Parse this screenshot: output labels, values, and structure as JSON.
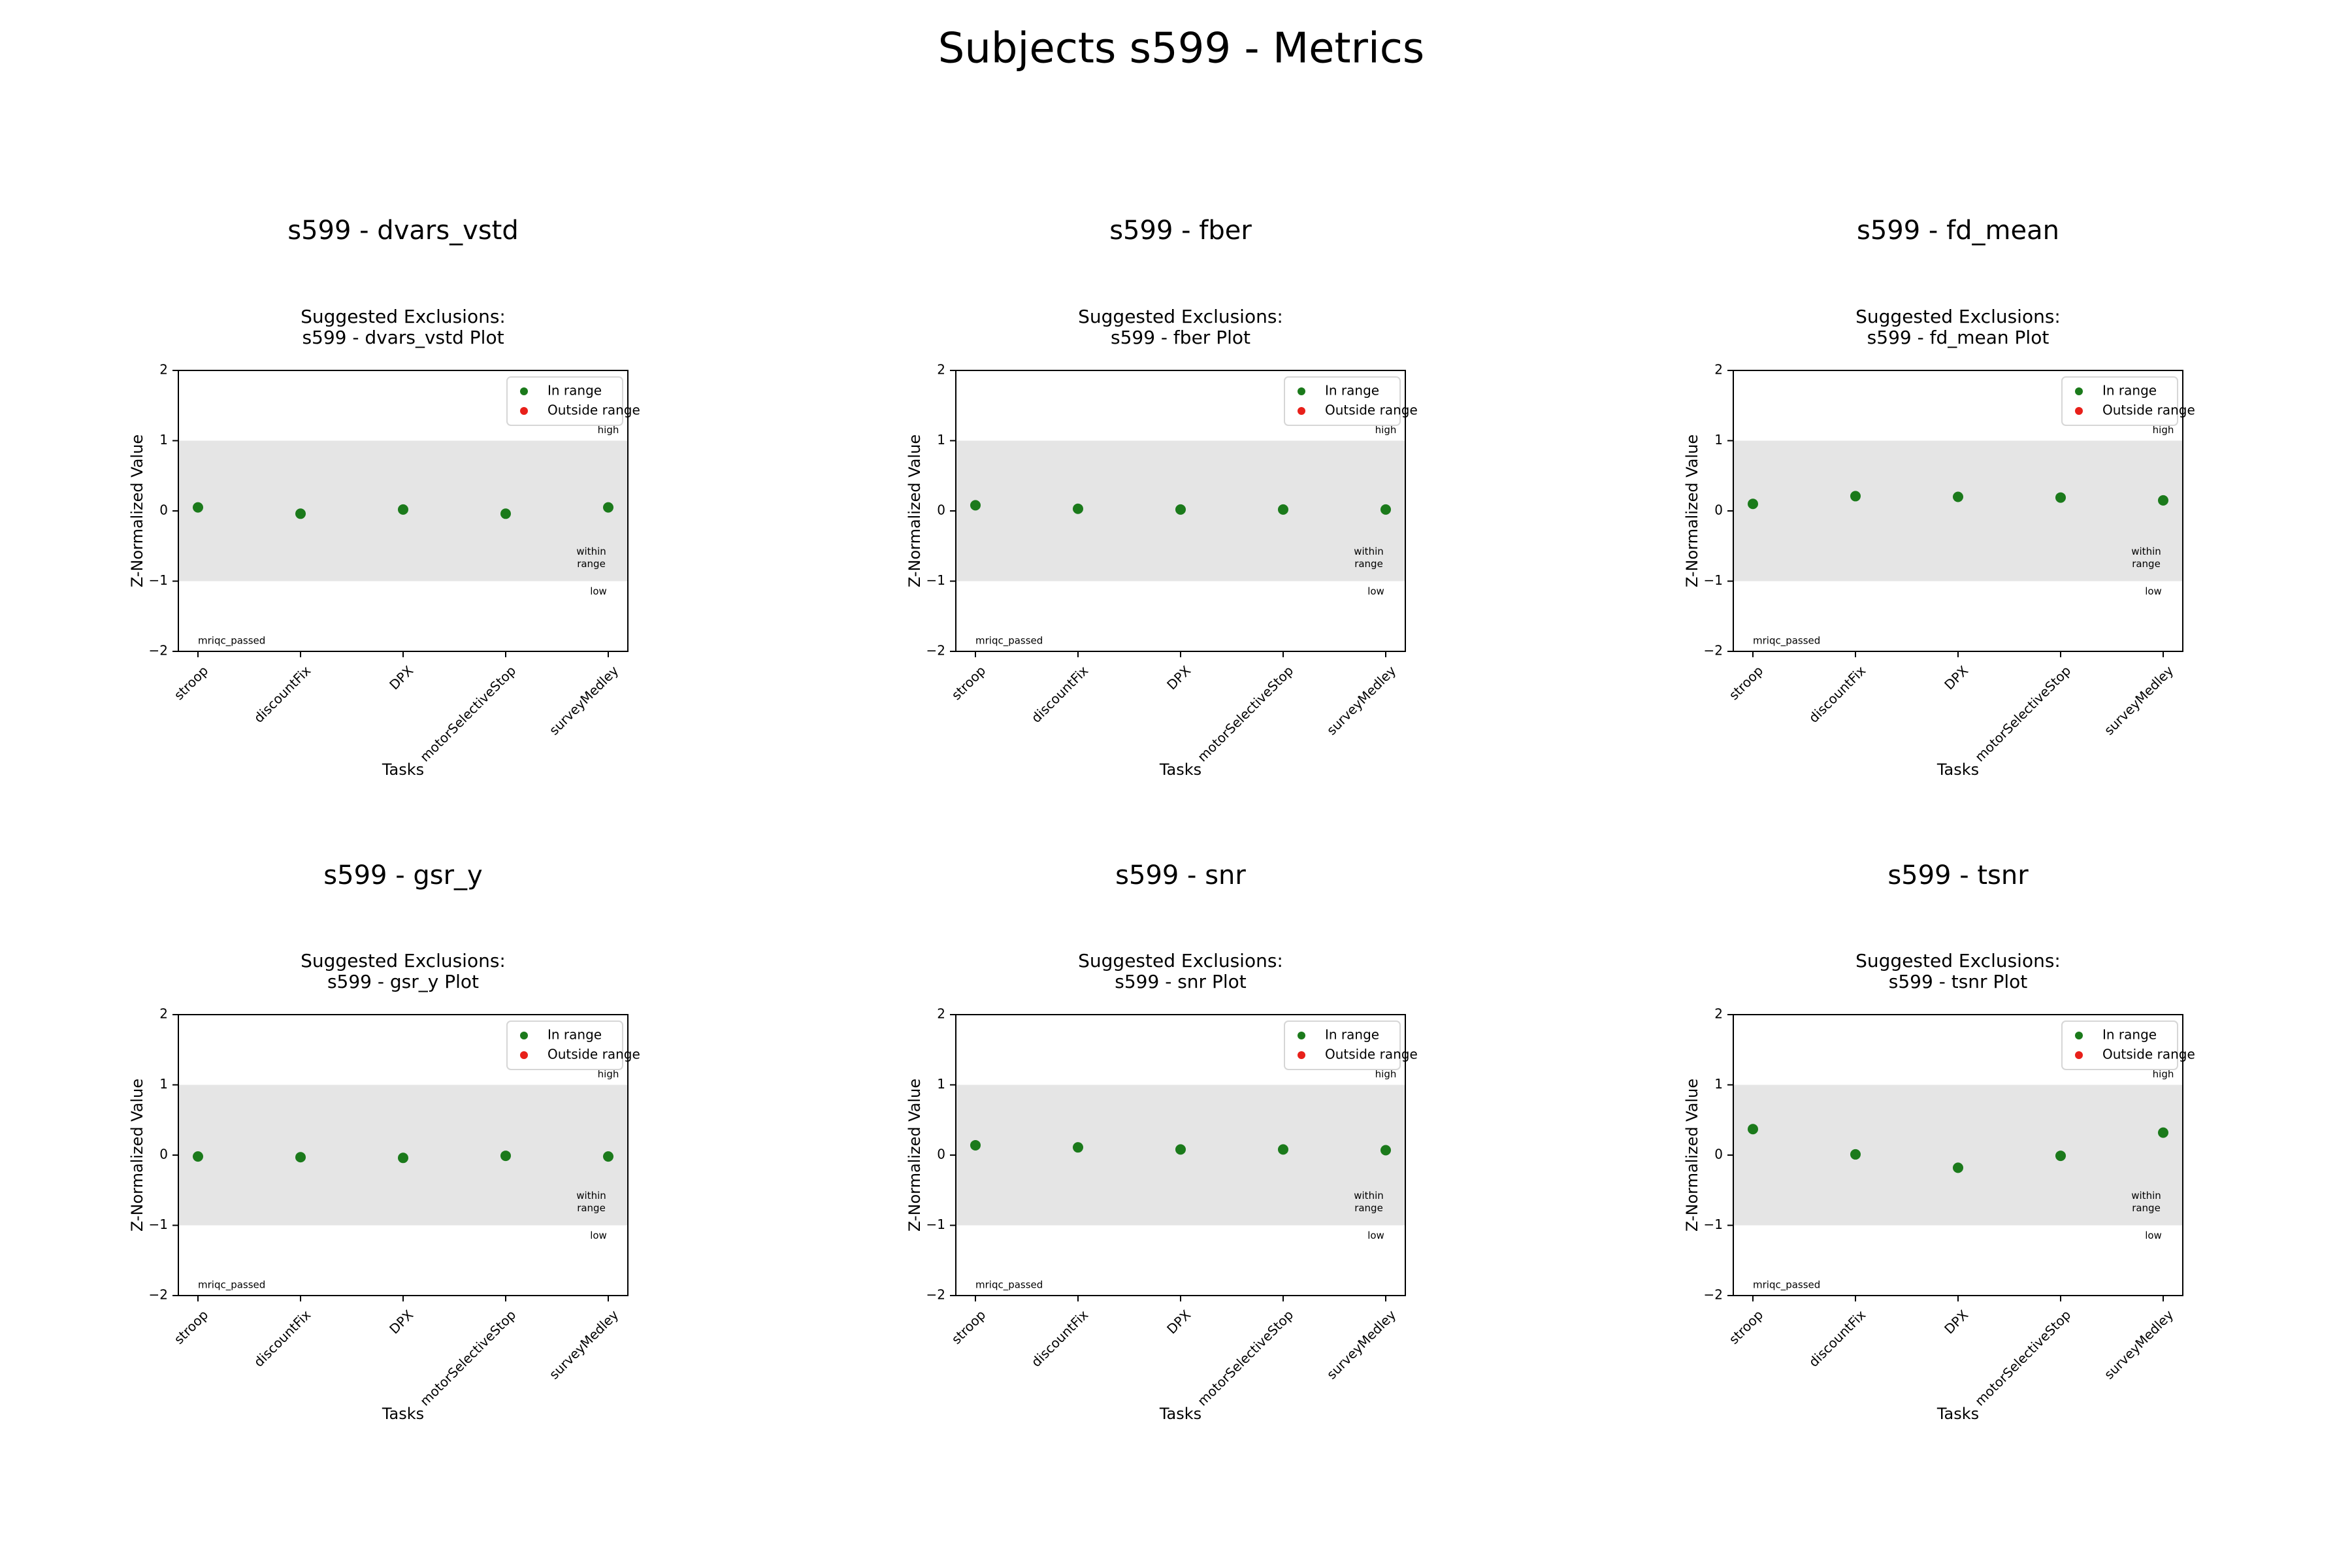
{
  "figure": {
    "title": "Subjects s599 - Metrics"
  },
  "legend": {
    "in_label": "In range",
    "out_label": "Outside range",
    "in_color": "#1b7a1b",
    "out_color": "#e8201a",
    "placement": "upper right"
  },
  "annotations": {
    "high": "high",
    "within": [
      "within",
      "range"
    ],
    "low": "low",
    "passed": "mriqc_passed"
  },
  "chart_data": [
    {
      "type": "scatter",
      "title": "s599 - dvars_vstd",
      "subtitle": [
        "Suggested Exclusions:",
        "s599 - dvars_vstd Plot"
      ],
      "xlabel": "Tasks",
      "ylabel": "Z-Normalized Value",
      "categories": [
        "stroop",
        "discountFix",
        "DPX",
        "motorSelectiveStop",
        "surveyMedley"
      ],
      "values": [
        0.05,
        -0.04,
        0.02,
        -0.04,
        0.05
      ],
      "ylim": [
        -2,
        2
      ],
      "yticks": [
        2,
        1,
        0,
        -1,
        -2
      ],
      "ytick_labels": [
        "2",
        "1",
        "0",
        "−1",
        "−2"
      ],
      "band": [
        -1,
        1
      ],
      "grid": false
    },
    {
      "type": "scatter",
      "title": "s599 - fber",
      "subtitle": [
        "Suggested Exclusions:",
        "s599 - fber Plot"
      ],
      "xlabel": "Tasks",
      "ylabel": "Z-Normalized Value",
      "categories": [
        "stroop",
        "discountFix",
        "DPX",
        "motorSelectiveStop",
        "surveyMedley"
      ],
      "values": [
        0.08,
        0.03,
        0.02,
        0.02,
        0.02
      ],
      "ylim": [
        -2,
        2
      ],
      "yticks": [
        2,
        1,
        0,
        -1,
        -2
      ],
      "ytick_labels": [
        "2",
        "1",
        "0",
        "−1",
        "−2"
      ],
      "band": [
        -1,
        1
      ],
      "grid": false
    },
    {
      "type": "scatter",
      "title": "s599 - fd_mean",
      "subtitle": [
        "Suggested Exclusions:",
        "s599 - fd_mean Plot"
      ],
      "xlabel": "Tasks",
      "ylabel": "Z-Normalized Value",
      "categories": [
        "stroop",
        "discountFix",
        "DPX",
        "motorSelectiveStop",
        "surveyMedley"
      ],
      "values": [
        0.1,
        0.21,
        0.2,
        0.19,
        0.15
      ],
      "ylim": [
        -2,
        2
      ],
      "yticks": [
        2,
        1,
        0,
        -1,
        -2
      ],
      "ytick_labels": [
        "2",
        "1",
        "0",
        "−1",
        "−2"
      ],
      "band": [
        -1,
        1
      ],
      "grid": false
    },
    {
      "type": "scatter",
      "title": "s599 - gsr_y",
      "subtitle": [
        "Suggested Exclusions:",
        "s599 - gsr_y Plot"
      ],
      "xlabel": "Tasks",
      "ylabel": "Z-Normalized Value",
      "categories": [
        "stroop",
        "discountFix",
        "DPX",
        "motorSelectiveStop",
        "surveyMedley"
      ],
      "values": [
        -0.02,
        -0.03,
        -0.04,
        -0.01,
        -0.02
      ],
      "ylim": [
        -2,
        2
      ],
      "yticks": [
        2,
        1,
        0,
        -1,
        -2
      ],
      "ytick_labels": [
        "2",
        "1",
        "0",
        "−1",
        "−2"
      ],
      "band": [
        -1,
        1
      ],
      "grid": false
    },
    {
      "type": "scatter",
      "title": "s599 - snr",
      "subtitle": [
        "Suggested Exclusions:",
        "s599 - snr Plot"
      ],
      "xlabel": "Tasks",
      "ylabel": "Z-Normalized Value",
      "categories": [
        "stroop",
        "discountFix",
        "DPX",
        "motorSelectiveStop",
        "surveyMedley"
      ],
      "values": [
        0.14,
        0.11,
        0.08,
        0.08,
        0.07
      ],
      "ylim": [
        -2,
        2
      ],
      "yticks": [
        2,
        1,
        0,
        -1,
        -2
      ],
      "ytick_labels": [
        "2",
        "1",
        "0",
        "−1",
        "−2"
      ],
      "band": [
        -1,
        1
      ],
      "grid": false
    },
    {
      "type": "scatter",
      "title": "s599 - tsnr",
      "subtitle": [
        "Suggested Exclusions:",
        "s599 - tsnr Plot"
      ],
      "xlabel": "Tasks",
      "ylabel": "Z-Normalized Value",
      "categories": [
        "stroop",
        "discountFix",
        "DPX",
        "motorSelectiveStop",
        "surveyMedley"
      ],
      "values": [
        0.37,
        0.01,
        -0.18,
        -0.01,
        0.32
      ],
      "ylim": [
        -2,
        2
      ],
      "yticks": [
        2,
        1,
        0,
        -1,
        -2
      ],
      "ytick_labels": [
        "2",
        "1",
        "0",
        "−1",
        "−2"
      ],
      "band": [
        -1,
        1
      ],
      "grid": false
    }
  ]
}
